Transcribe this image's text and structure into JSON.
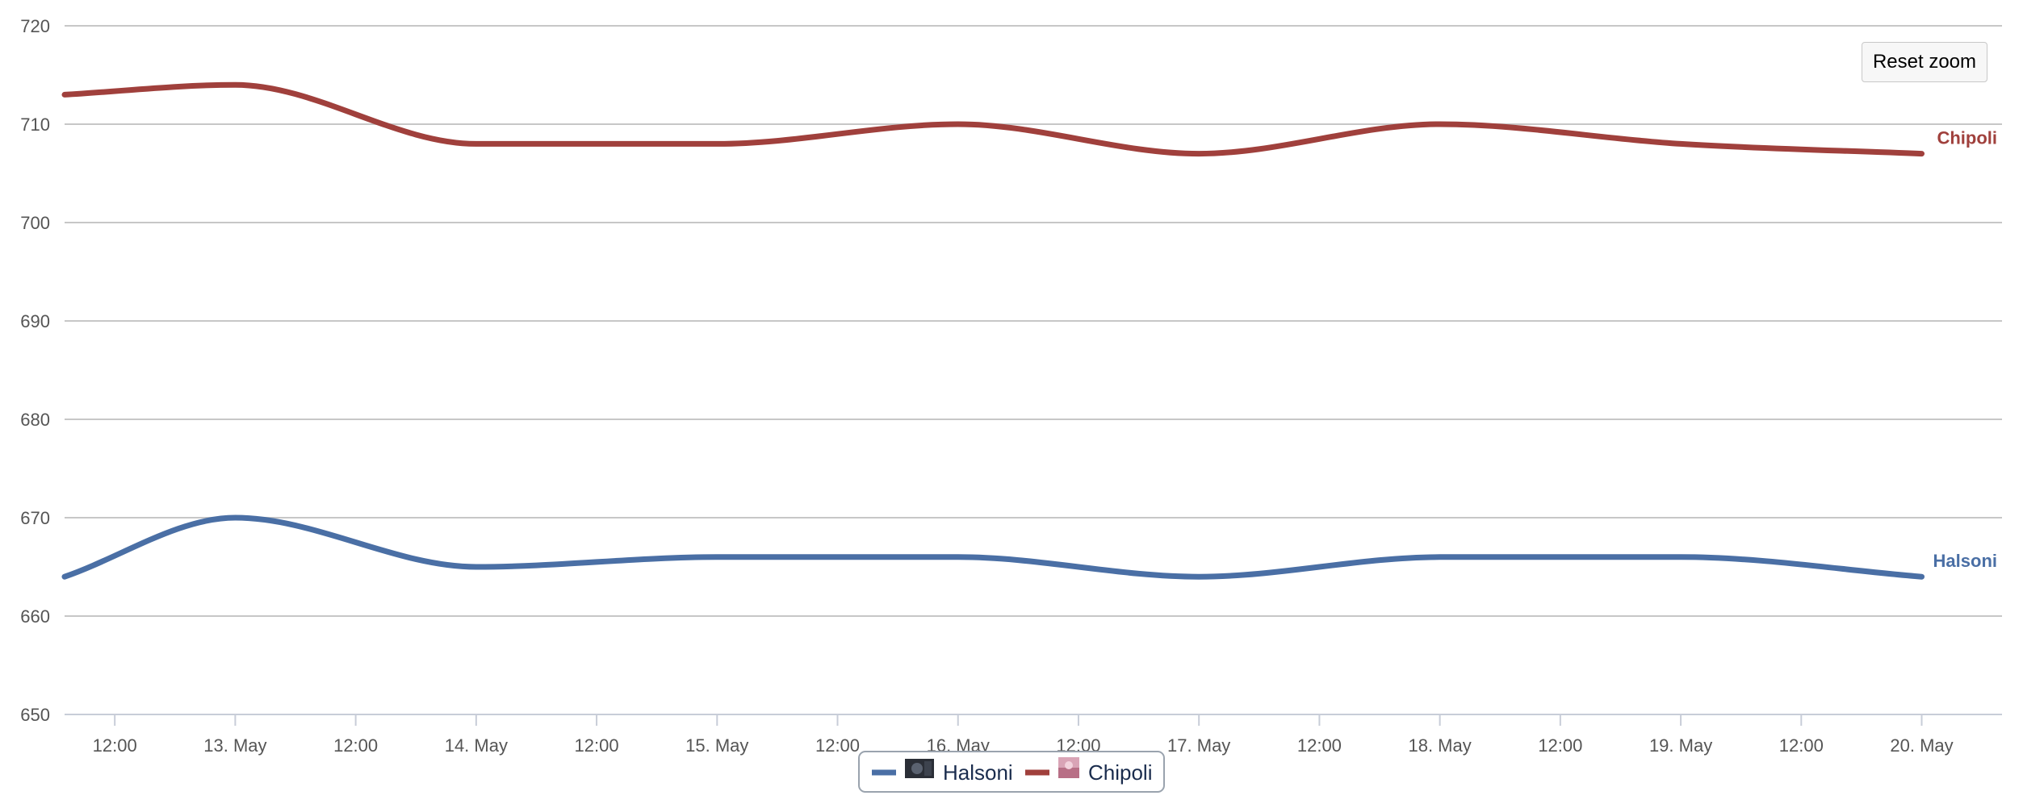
{
  "reset_zoom_label": "Reset zoom",
  "chart_data": {
    "type": "line",
    "x_axis": {
      "type": "datetime",
      "range": [
        "2012-05-12T07:00",
        "2012-05-20T08:00"
      ],
      "tick_labels": [
        "12:00",
        "13. May",
        "12:00",
        "14. May",
        "12:00",
        "15. May",
        "12:00",
        "16. May",
        "12:00",
        "17. May",
        "12:00",
        "18. May",
        "12:00",
        "19. May",
        "12:00",
        "20. May"
      ]
    },
    "y_axis": {
      "range": [
        650,
        720
      ],
      "tick_values": [
        650,
        660,
        670,
        680,
        690,
        700,
        710,
        720
      ],
      "gridlines": true
    },
    "series": [
      {
        "name": "Halsoni",
        "color": "#4a6fa5",
        "smooth": true,
        "points": [
          {
            "x": "2012-05-12T07:00",
            "y": 664
          },
          {
            "x": "2012-05-13T00:00",
            "y": 670
          },
          {
            "x": "2012-05-14T00:00",
            "y": 665
          },
          {
            "x": "2012-05-15T00:00",
            "y": 666
          },
          {
            "x": "2012-05-16T00:00",
            "y": 666
          },
          {
            "x": "2012-05-17T00:00",
            "y": 664
          },
          {
            "x": "2012-05-18T00:00",
            "y": 666
          },
          {
            "x": "2012-05-19T00:00",
            "y": 666
          },
          {
            "x": "2012-05-20T00:00",
            "y": 664
          }
        ]
      },
      {
        "name": "Chipoli",
        "color": "#a0403c",
        "smooth": true,
        "points": [
          {
            "x": "2012-05-12T07:00",
            "y": 713
          },
          {
            "x": "2012-05-13T00:00",
            "y": 714
          },
          {
            "x": "2012-05-14T00:00",
            "y": 708
          },
          {
            "x": "2012-05-15T00:00",
            "y": 708
          },
          {
            "x": "2012-05-16T00:00",
            "y": 710
          },
          {
            "x": "2012-05-17T00:00",
            "y": 707
          },
          {
            "x": "2012-05-18T00:00",
            "y": 710
          },
          {
            "x": "2012-05-19T00:00",
            "y": 708
          },
          {
            "x": "2012-05-20T00:00",
            "y": 707
          }
        ]
      }
    ],
    "legend": {
      "position": "bottom-center",
      "items": [
        {
          "name": "Halsoni",
          "color": "#4a6fa5",
          "icon": "avatar-dark-thumbnail"
        },
        {
          "name": "Chipoli",
          "color": "#a0403c",
          "icon": "avatar-pink-thumbnail"
        }
      ]
    },
    "series_end_labels": true
  }
}
